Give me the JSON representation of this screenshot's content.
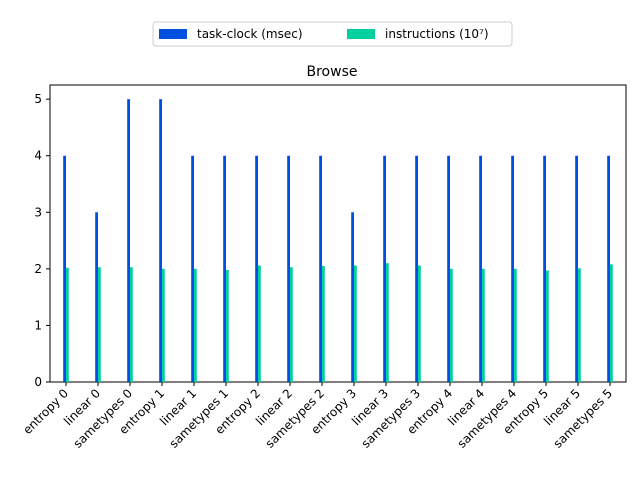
{
  "chart_data": {
    "type": "bar",
    "title": "Browse",
    "xlabel": "",
    "ylabel": "",
    "ylim": [
      0,
      5.25
    ],
    "yticks": [
      0,
      1,
      2,
      3,
      4,
      5
    ],
    "legend_position": "top-center",
    "grid": false,
    "categories": [
      "entropy 0",
      "linear 0",
      "sametypes 0",
      "entropy 1",
      "linear 1",
      "sametypes 1",
      "entropy 2",
      "linear 2",
      "sametypes 2",
      "entropy 3",
      "linear 3",
      "sametypes 3",
      "entropy 4",
      "linear 4",
      "sametypes 4",
      "entropy 5",
      "linear 5",
      "sametypes 5"
    ],
    "series": [
      {
        "name": "task-clock (msec)",
        "color": "#0050e0",
        "values": [
          4,
          3,
          5,
          5,
          4,
          4,
          4,
          4,
          4,
          3,
          4,
          4,
          4,
          4,
          4,
          4,
          4,
          4
        ]
      },
      {
        "name": "instructions (10⁷)",
        "color": "#00d0a0",
        "values": [
          2.02,
          2.03,
          2.03,
          2.0,
          2.0,
          1.98,
          2.06,
          2.03,
          2.05,
          2.06,
          2.1,
          2.06,
          2.0,
          2.0,
          2.0,
          1.97,
          2.01,
          2.08
        ]
      }
    ]
  }
}
